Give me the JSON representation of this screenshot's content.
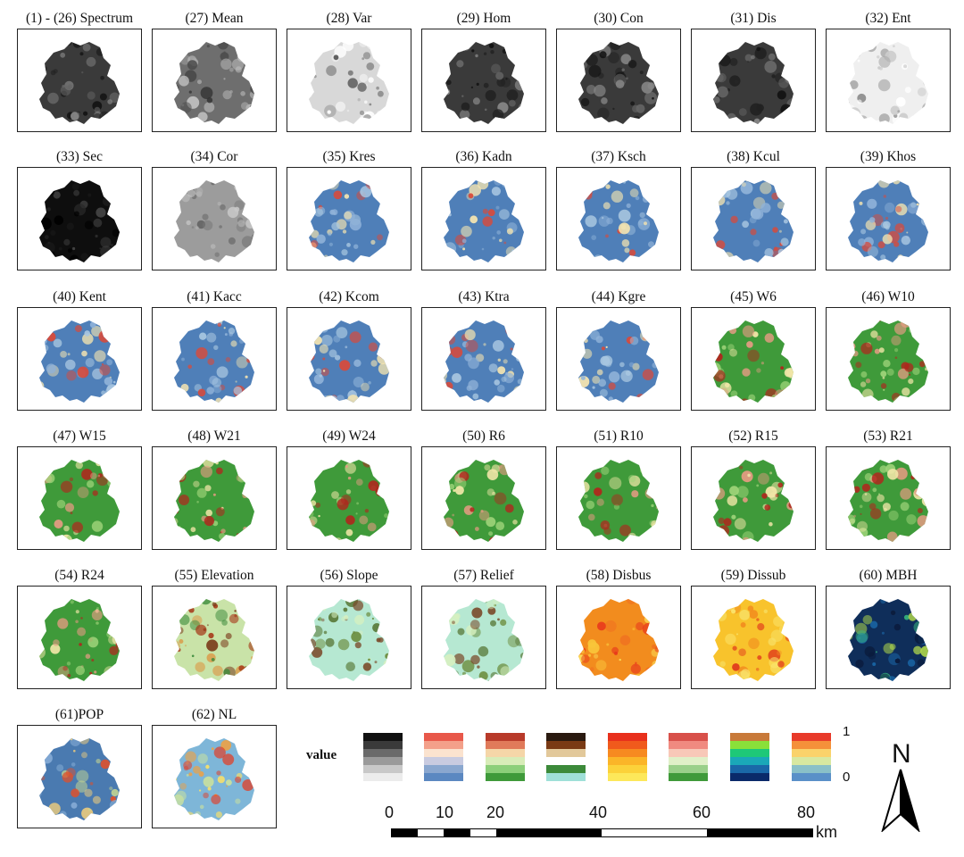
{
  "panels": [
    {
      "label": "(1) - (26) Spectrum",
      "style": "dark"
    },
    {
      "label": "(27) Mean",
      "style": "gray"
    },
    {
      "label": "(28) Var",
      "style": "light"
    },
    {
      "label": "(29) Hom",
      "style": "dark"
    },
    {
      "label": "(30) Con",
      "style": "dark"
    },
    {
      "label": "(31) Dis",
      "style": "dark"
    },
    {
      "label": "(32) Ent",
      "style": "verylight"
    },
    {
      "label": "(33) Sec",
      "style": "black"
    },
    {
      "label": "(34) Cor",
      "style": "silver"
    },
    {
      "label": "(35) Kres",
      "style": "kde"
    },
    {
      "label": "(36) Kadn",
      "style": "kde"
    },
    {
      "label": "(37) Ksch",
      "style": "kde"
    },
    {
      "label": "(38) Kcul",
      "style": "kde"
    },
    {
      "label": "(39) Khos",
      "style": "kde"
    },
    {
      "label": "(40) Kent",
      "style": "kde"
    },
    {
      "label": "(41) Kacc",
      "style": "kde"
    },
    {
      "label": "(42) Kcom",
      "style": "kde"
    },
    {
      "label": "(43) Ktra",
      "style": "kde"
    },
    {
      "label": "(44) Kgre",
      "style": "kde"
    },
    {
      "label": "(45) W6",
      "style": "green"
    },
    {
      "label": "(46) W10",
      "style": "green"
    },
    {
      "label": "(47) W15",
      "style": "green"
    },
    {
      "label": "(48) W21",
      "style": "green"
    },
    {
      "label": "(49) W24",
      "style": "green"
    },
    {
      "label": "(50) R6",
      "style": "green"
    },
    {
      "label": "(51) R10",
      "style": "green"
    },
    {
      "label": "(52) R15",
      "style": "green"
    },
    {
      "label": "(53) R21",
      "style": "green"
    },
    {
      "label": "(54) R24",
      "style": "green"
    },
    {
      "label": "(55) Elevation",
      "style": "elev"
    },
    {
      "label": "(56) Slope",
      "style": "slope"
    },
    {
      "label": "(57) Relief",
      "style": "slope"
    },
    {
      "label": "(58) Disbus",
      "style": "orange"
    },
    {
      "label": "(59) Dissub",
      "style": "orange2"
    },
    {
      "label": "(60) MBH",
      "style": "mbh"
    },
    {
      "label": "(61)POP",
      "style": "pop"
    },
    {
      "label": "(62) NL",
      "style": "nl"
    }
  ],
  "legend": {
    "title": "value",
    "max_label": "1",
    "min_label": "0",
    "ramps": [
      [
        "#111111",
        "#3a3a3a",
        "#6a6a6a",
        "#9a9a9a",
        "#c8c8c8",
        "#ececec"
      ],
      [
        "#e8584a",
        "#f3a08a",
        "#fbe3cf",
        "#c9cbe0",
        "#8aa7cf",
        "#5b88c1"
      ],
      [
        "#b83a2a",
        "#e07a5a",
        "#f5d6a8",
        "#d8ecb8",
        "#8ccf7a",
        "#3f9a3a"
      ],
      [
        "#2a1a10",
        "#7a3a14",
        "#e2c89a",
        "#ffffff",
        "#3c8a3a",
        "#9fe0d8"
      ],
      [
        "#e8301c",
        "#f05a1c",
        "#f78a20",
        "#fbb528",
        "#fcd23a",
        "#fde85a"
      ],
      [
        "#d8504a",
        "#f08a80",
        "#f8c8b8",
        "#e0f0c8",
        "#9ad08a",
        "#3f9a3a"
      ],
      [
        "#c87a3a",
        "#8ae03a",
        "#1ec878",
        "#1aa8b8",
        "#1a68a8",
        "#0a2a6a"
      ],
      [
        "#e83a2a",
        "#f5903a",
        "#fad26a",
        "#d8e8a0",
        "#8ac0c8",
        "#5a90c8"
      ]
    ]
  },
  "scale_bar": {
    "ticks": [
      "0",
      "10",
      "20",
      "40",
      "60",
      "80"
    ],
    "unit": "km"
  },
  "north_arrow": {
    "label": "N"
  }
}
